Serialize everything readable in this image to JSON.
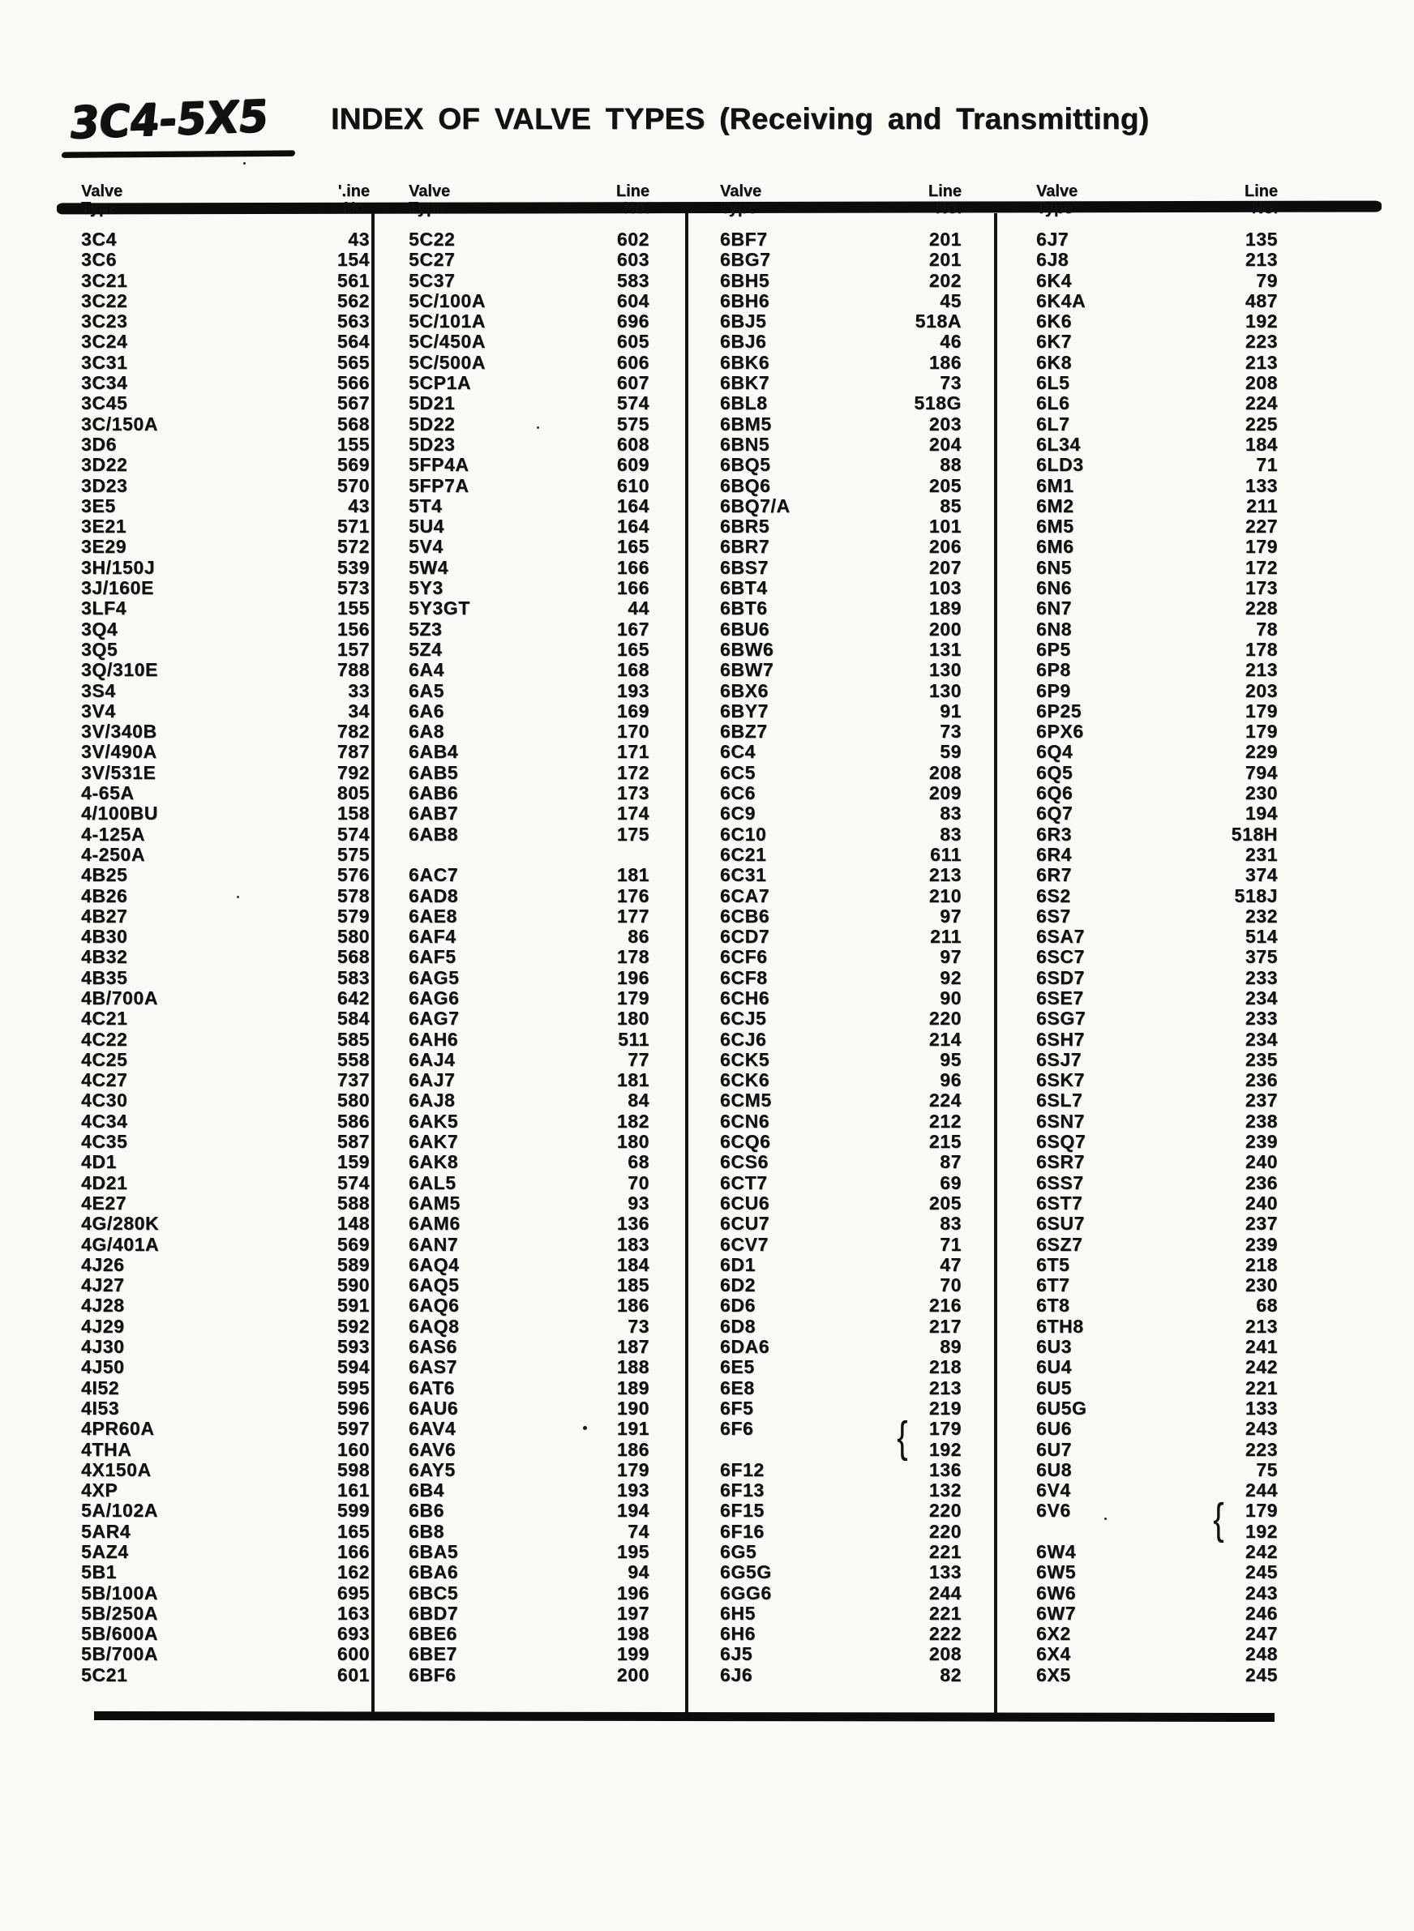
{
  "page": {
    "mark": "3C4-5X5",
    "title": "INDEX OF VALVE TYPES (Receiving and Transmitting)"
  },
  "table": {
    "columns": [
      {
        "header": {
          "type": [
            "Valve",
            "Type"
          ],
          "line": [
            "'.ine",
            "No."
          ]
        },
        "rows": [
          [
            "3C4",
            "43"
          ],
          [
            "3C6",
            "154"
          ],
          [
            "3C21",
            "561"
          ],
          [
            "3C22",
            "562"
          ],
          [
            "3C23",
            "563"
          ],
          [
            "3C24",
            "564"
          ],
          [
            "3C31",
            "565"
          ],
          [
            "3C34",
            "566"
          ],
          [
            "3C45",
            "567"
          ],
          [
            "3C/150A",
            "568"
          ],
          [
            "3D6",
            "155"
          ],
          [
            "3D22",
            "569"
          ],
          [
            "3D23",
            "570"
          ],
          [
            "3E5",
            "43"
          ],
          [
            "3E21",
            "571"
          ],
          [
            "3E29",
            "572"
          ],
          [
            "3H/150J",
            "539"
          ],
          [
            "3J/160E",
            "573"
          ],
          [
            "3LF4",
            "155"
          ],
          [
            "3Q4",
            "156"
          ],
          [
            "3Q5",
            "157"
          ],
          [
            "3Q/310E",
            "788"
          ],
          [
            "3S4",
            "33"
          ],
          [
            "3V4",
            "34"
          ],
          [
            "3V/340B",
            "782"
          ],
          [
            "3V/490A",
            "787"
          ],
          [
            "3V/531E",
            "792"
          ],
          [
            "4-65A",
            "805"
          ],
          [
            "4/100BU",
            "158"
          ],
          [
            "4-125A",
            "574"
          ],
          [
            "4-250A",
            "575"
          ],
          [
            "4B25",
            "576"
          ],
          [
            "4B26",
            "578"
          ],
          [
            "4B27",
            "579"
          ],
          [
            "4B30",
            "580"
          ],
          [
            "4B32",
            "568"
          ],
          [
            "4B35",
            "583"
          ],
          [
            "4B/700A",
            "642"
          ],
          [
            "4C21",
            "584"
          ],
          [
            "4C22",
            "585"
          ],
          [
            "4C25",
            "558"
          ],
          [
            "4C27",
            "737"
          ],
          [
            "4C30",
            "580"
          ],
          [
            "4C34",
            "586"
          ],
          [
            "4C35",
            "587"
          ],
          [
            "4D1",
            "159"
          ],
          [
            "4D21",
            "574"
          ],
          [
            "4E27",
            "588"
          ],
          [
            "4G/280K",
            "148"
          ],
          [
            "4G/401A",
            "569"
          ],
          [
            "4J26",
            "589"
          ],
          [
            "4J27",
            "590"
          ],
          [
            "4J28",
            "591"
          ],
          [
            "4J29",
            "592"
          ],
          [
            "4J30",
            "593"
          ],
          [
            "4J50",
            "594"
          ],
          [
            "4I52",
            "595"
          ],
          [
            "4I53",
            "596"
          ],
          [
            "4PR60A",
            "597"
          ],
          [
            "4THA",
            "160"
          ],
          [
            "4X150A",
            "598"
          ],
          [
            "4XP",
            "161"
          ],
          [
            "5A/102A",
            "599"
          ],
          [
            "5AR4",
            "165"
          ],
          [
            "5AZ4",
            "166"
          ],
          [
            "5B1",
            "162"
          ],
          [
            "5B/100A",
            "695"
          ],
          [
            "5B/250A",
            "163"
          ],
          [
            "5B/600A",
            "693"
          ],
          [
            "5B/700A",
            "600"
          ],
          [
            "5C21",
            "601"
          ]
        ]
      },
      {
        "header": {
          "type": [
            "Valve",
            "Type"
          ],
          "line": [
            "Line",
            "No."
          ]
        },
        "rows": [
          [
            "5C22",
            "602"
          ],
          [
            "5C27",
            "603"
          ],
          [
            "5C37",
            "583"
          ],
          [
            "5C/100A",
            "604"
          ],
          [
            "5C/101A",
            "696"
          ],
          [
            "5C/450A",
            "605"
          ],
          [
            "5C/500A",
            "606"
          ],
          [
            "5CP1A",
            "607"
          ],
          [
            "5D21",
            "574"
          ],
          [
            "5D22",
            "575"
          ],
          [
            "5D23",
            "608"
          ],
          [
            "5FP4A",
            "609"
          ],
          [
            "5FP7A",
            "610"
          ],
          [
            "5T4",
            "164"
          ],
          [
            "5U4",
            "164"
          ],
          [
            "5V4",
            "165"
          ],
          [
            "5W4",
            "166"
          ],
          [
            "5Y3",
            "166"
          ],
          [
            "5Y3GT",
            "44"
          ],
          [
            "5Z3",
            "167"
          ],
          [
            "5Z4",
            "165"
          ],
          [
            "6A4",
            "168"
          ],
          [
            "6A5",
            "193"
          ],
          [
            "6A6",
            "169"
          ],
          [
            "6A8",
            "170"
          ],
          [
            "6AB4",
            "171"
          ],
          [
            "6AB5",
            "172"
          ],
          [
            "6AB6",
            "173"
          ],
          [
            "6AB7",
            "174"
          ],
          [
            "6AB8",
            "175"
          ],
          [
            "",
            ""
          ],
          [
            "6AC7",
            "181"
          ],
          [
            "6AD8",
            "176"
          ],
          [
            "6AE8",
            "177"
          ],
          [
            "6AF4",
            "86"
          ],
          [
            "6AF5",
            "178"
          ],
          [
            "6AG5",
            "196"
          ],
          [
            "6AG6",
            "179"
          ],
          [
            "6AG7",
            "180"
          ],
          [
            "6AH6",
            "511"
          ],
          [
            "6AJ4",
            "77"
          ],
          [
            "6AJ7",
            "181"
          ],
          [
            "6AJ8",
            "84"
          ],
          [
            "6AK5",
            "182"
          ],
          [
            "6AK7",
            "180"
          ],
          [
            "6AK8",
            "68"
          ],
          [
            "6AL5",
            "70"
          ],
          [
            "6AM5",
            "93"
          ],
          [
            "6AM6",
            "136"
          ],
          [
            "6AN7",
            "183"
          ],
          [
            "6AQ4",
            "184"
          ],
          [
            "6AQ5",
            "185"
          ],
          [
            "6AQ6",
            "186"
          ],
          [
            "6AQ8",
            "73"
          ],
          [
            "6AS6",
            "187"
          ],
          [
            "6AS7",
            "188"
          ],
          [
            "6AT6",
            "189"
          ],
          [
            "6AU6",
            "190"
          ],
          [
            "6AV4",
            "191"
          ],
          [
            "6AV6",
            "186"
          ],
          [
            "6AY5",
            "179"
          ],
          [
            "6B4",
            "193"
          ],
          [
            "6B6",
            "194"
          ],
          [
            "6B8",
            "74"
          ],
          [
            "6BA5",
            "195"
          ],
          [
            "6BA6",
            "94"
          ],
          [
            "6BC5",
            "196"
          ],
          [
            "6BD7",
            "197"
          ],
          [
            "6BE6",
            "198"
          ],
          [
            "6BE7",
            "199"
          ],
          [
            "6BF6",
            "200"
          ]
        ]
      },
      {
        "header": {
          "type": [
            "Valve",
            "Type"
          ],
          "line": [
            "Line",
            "No."
          ]
        },
        "rows": [
          [
            "6BF7",
            "201"
          ],
          [
            "6BG7",
            "201"
          ],
          [
            "6BH5",
            "202"
          ],
          [
            "6BH6",
            "45"
          ],
          [
            "6BJ5",
            "518A"
          ],
          [
            "6BJ6",
            "46"
          ],
          [
            "6BK6",
            "186"
          ],
          [
            "6BK7",
            "73"
          ],
          [
            "6BL8",
            "518G"
          ],
          [
            "6BM5",
            "203"
          ],
          [
            "6BN5",
            "204"
          ],
          [
            "6BQ5",
            "88"
          ],
          [
            "6BQ6",
            "205"
          ],
          [
            "6BQ7/A",
            "85"
          ],
          [
            "6BR5",
            "101"
          ],
          [
            "6BR7",
            "206"
          ],
          [
            "6BS7",
            "207"
          ],
          [
            "6BT4",
            "103"
          ],
          [
            "6BT6",
            "189"
          ],
          [
            "6BU6",
            "200"
          ],
          [
            "6BW6",
            "131"
          ],
          [
            "6BW7",
            "130"
          ],
          [
            "6BX6",
            "130"
          ],
          [
            "6BY7",
            "91"
          ],
          [
            "6BZ7",
            "73"
          ],
          [
            "6C4",
            "59"
          ],
          [
            "6C5",
            "208"
          ],
          [
            "6C6",
            "209"
          ],
          [
            "6C9",
            "83"
          ],
          [
            "6C10",
            "83"
          ],
          [
            "6C21",
            "611"
          ],
          [
            "6C31",
            "213"
          ],
          [
            "6CA7",
            "210"
          ],
          [
            "6CB6",
            "97"
          ],
          [
            "6CD7",
            "211"
          ],
          [
            "6CF6",
            "97"
          ],
          [
            "6CF8",
            "92"
          ],
          [
            "6CH6",
            "90"
          ],
          [
            "6CJ5",
            "220"
          ],
          [
            "6CJ6",
            "214"
          ],
          [
            "6CK5",
            "95"
          ],
          [
            "6CK6",
            "96"
          ],
          [
            "6CM5",
            "224"
          ],
          [
            "6CN6",
            "212"
          ],
          [
            "6CQ6",
            "215"
          ],
          [
            "6CS6",
            "87"
          ],
          [
            "6CT7",
            "69"
          ],
          [
            "6CU6",
            "205"
          ],
          [
            "6CU7",
            "83"
          ],
          [
            "6CV7",
            "71"
          ],
          [
            "6D1",
            "47"
          ],
          [
            "6D2",
            "70"
          ],
          [
            "6D6",
            "216"
          ],
          [
            "6D8",
            "217"
          ],
          [
            "6DA6",
            "89"
          ],
          [
            "6E5",
            "218"
          ],
          [
            "6E8",
            "213"
          ],
          [
            "6F5",
            "219"
          ],
          [
            "6F6",
            "179",
            "b1"
          ],
          [
            "",
            "192",
            "b2"
          ],
          [
            "6F12",
            "136"
          ],
          [
            "6F13",
            "132"
          ],
          [
            "6F15",
            "220"
          ],
          [
            "6F16",
            "220"
          ],
          [
            "6G5",
            "221"
          ],
          [
            "6G5G",
            "133"
          ],
          [
            "6GG6",
            "244"
          ],
          [
            "6H5",
            "221"
          ],
          [
            "6H6",
            "222"
          ],
          [
            "6J5",
            "208"
          ],
          [
            "6J6",
            "82"
          ]
        ]
      },
      {
        "header": {
          "type": [
            "Valve",
            "Type"
          ],
          "line": [
            "Line",
            "No."
          ]
        },
        "rows": [
          [
            "6J7",
            "135"
          ],
          [
            "6J8",
            "213"
          ],
          [
            "6K4",
            "79"
          ],
          [
            "6K4A",
            "487"
          ],
          [
            "6K6",
            "192"
          ],
          [
            "6K7",
            "223"
          ],
          [
            "6K8",
            "213"
          ],
          [
            "6L5",
            "208"
          ],
          [
            "6L6",
            "224"
          ],
          [
            "6L7",
            "225"
          ],
          [
            "6L34",
            "184"
          ],
          [
            "6LD3",
            "71"
          ],
          [
            "6M1",
            "133"
          ],
          [
            "6M2",
            "211"
          ],
          [
            "6M5",
            "227"
          ],
          [
            "6M6",
            "179"
          ],
          [
            "6N5",
            "172"
          ],
          [
            "6N6",
            "173"
          ],
          [
            "6N7",
            "228"
          ],
          [
            "6N8",
            "78"
          ],
          [
            "6P5",
            "178"
          ],
          [
            "6P8",
            "213"
          ],
          [
            "6P9",
            "203"
          ],
          [
            "6P25",
            "179"
          ],
          [
            "6PX6",
            "179"
          ],
          [
            "6Q4",
            "229"
          ],
          [
            "6Q5",
            "794"
          ],
          [
            "6Q6",
            "230"
          ],
          [
            "6Q7",
            "194"
          ],
          [
            "6R3",
            "518H"
          ],
          [
            "6R4",
            "231"
          ],
          [
            "6R7",
            "374"
          ],
          [
            "6S2",
            "518J"
          ],
          [
            "6S7",
            "232"
          ],
          [
            "6SA7",
            "514"
          ],
          [
            "6SC7",
            "375"
          ],
          [
            "6SD7",
            "233"
          ],
          [
            "6SE7",
            "234"
          ],
          [
            "6SG7",
            "233"
          ],
          [
            "6SH7",
            "234"
          ],
          [
            "6SJ7",
            "235"
          ],
          [
            "6SK7",
            "236"
          ],
          [
            "6SL7",
            "237"
          ],
          [
            "6SN7",
            "238"
          ],
          [
            "6SQ7",
            "239"
          ],
          [
            "6SR7",
            "240"
          ],
          [
            "6SS7",
            "236"
          ],
          [
            "6ST7",
            "240"
          ],
          [
            "6SU7",
            "237"
          ],
          [
            "6SZ7",
            "239"
          ],
          [
            "6T5",
            "218"
          ],
          [
            "6T7",
            "230"
          ],
          [
            "6T8",
            "68"
          ],
          [
            "6TH8",
            "213"
          ],
          [
            "6U3",
            "241"
          ],
          [
            "6U4",
            "242"
          ],
          [
            "6U5",
            "221"
          ],
          [
            "6U5G",
            "133"
          ],
          [
            "6U6",
            "243"
          ],
          [
            "6U7",
            "223"
          ],
          [
            "6U8",
            "75"
          ],
          [
            "6V4",
            "244"
          ],
          [
            "6V6",
            "179",
            "b1"
          ],
          [
            "",
            "192",
            "b2"
          ],
          [
            "6W4",
            "242"
          ],
          [
            "6W5",
            "245"
          ],
          [
            "6W6",
            "243"
          ],
          [
            "6W7",
            "246"
          ],
          [
            "6X2",
            "247"
          ],
          [
            "6X4",
            "248"
          ],
          [
            "6X5",
            "245"
          ]
        ]
      }
    ]
  }
}
